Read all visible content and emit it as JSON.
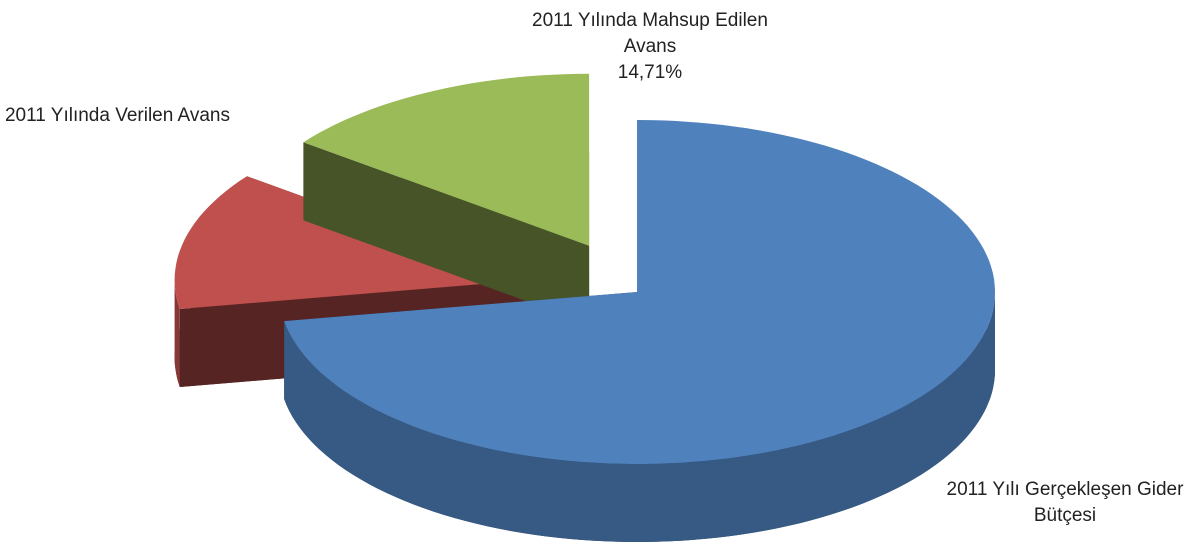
{
  "chart_data": {
    "type": "pie3d",
    "categories": [
      "2011 Yılı Gerçekleşen Gider Bütçesi",
      "2011 Yılında Verilen Avans",
      "2011 Yılında Mahsup Edilen Avans"
    ],
    "values": [
      72.29,
      13,
      14.71
    ],
    "value_labels": [
      null,
      null,
      "14,71%"
    ],
    "colors": [
      "#4f81bd",
      "#c0504d",
      "#9bbb59"
    ]
  }
}
